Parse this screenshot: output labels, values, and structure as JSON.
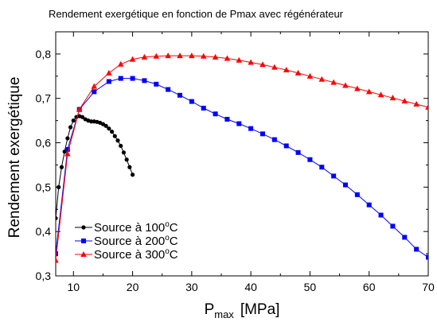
{
  "chart_data": {
    "type": "line",
    "title": "Rendement exergétique en fonction de Pmax avec régénérateur",
    "xlabel_main": "P",
    "xlabel_sub": "max",
    "xlabel_unit": "[MPa]",
    "ylabel": "Rendement exergétique",
    "xlim": [
      7,
      70
    ],
    "ylim": [
      0.3,
      0.85
    ],
    "x_ticks": [
      10,
      20,
      30,
      40,
      50,
      60,
      70
    ],
    "y_ticks": [
      0.3,
      0.4,
      0.5,
      0.6,
      0.7,
      0.8
    ],
    "x_tick_labels": [
      "10",
      "20",
      "30",
      "40",
      "50",
      "60",
      "70"
    ],
    "y_tick_labels": [
      "0,3",
      "0,4",
      "0,5",
      "0,6",
      "0,7",
      "0,8"
    ],
    "grid": false,
    "legend_position": "bottom-left",
    "series": [
      {
        "name_text": "Source à 100",
        "name_sup": "o",
        "name_unit": "C",
        "color": "#000000",
        "marker": "circle",
        "x": [
          7,
          7.5,
          8,
          8.5,
          9,
          9.5,
          10,
          10.5,
          11,
          11.5,
          12,
          12.5,
          13,
          13.5,
          14,
          14.5,
          15,
          15.5,
          16,
          16.5,
          17,
          17.5,
          18,
          18.5,
          19,
          19.5,
          20
        ],
        "y": [
          0.43,
          0.5,
          0.545,
          0.58,
          0.61,
          0.635,
          0.65,
          0.658,
          0.66,
          0.658,
          0.653,
          0.65,
          0.648,
          0.648,
          0.647,
          0.645,
          0.642,
          0.638,
          0.632,
          0.625,
          0.615,
          0.605,
          0.593,
          0.578,
          0.562,
          0.545,
          0.528
        ]
      },
      {
        "name_text": "Source à 200",
        "name_sup": "o",
        "name_unit": "C",
        "color": "#0000ff",
        "marker": "square",
        "x": [
          7,
          9,
          11,
          13.5,
          16,
          18,
          20,
          22,
          24,
          26,
          28,
          30,
          32,
          34,
          36,
          38,
          40,
          42,
          44,
          46,
          48,
          50,
          52,
          54,
          56,
          58,
          60,
          62,
          64,
          66,
          68,
          70
        ],
        "y": [
          0.35,
          0.585,
          0.675,
          0.715,
          0.738,
          0.745,
          0.745,
          0.74,
          0.732,
          0.72,
          0.707,
          0.693,
          0.678,
          0.665,
          0.653,
          0.643,
          0.632,
          0.62,
          0.607,
          0.593,
          0.578,
          0.562,
          0.545,
          0.525,
          0.505,
          0.483,
          0.46,
          0.437,
          0.412,
          0.387,
          0.36,
          0.342
        ]
      },
      {
        "name_text": "Source à 300",
        "name_sup": "o",
        "name_unit": "C",
        "color": "#ff0000",
        "marker": "triangle",
        "x": [
          7,
          9,
          11,
          13.5,
          16,
          18,
          20,
          22,
          24,
          26,
          28,
          30,
          32,
          34,
          36,
          38,
          40,
          42,
          44,
          46,
          48,
          50,
          52,
          54,
          56,
          58,
          60,
          62,
          64,
          66,
          68,
          70
        ],
        "y": [
          0.335,
          0.575,
          0.675,
          0.727,
          0.757,
          0.777,
          0.788,
          0.793,
          0.795,
          0.796,
          0.796,
          0.796,
          0.795,
          0.793,
          0.79,
          0.786,
          0.781,
          0.776,
          0.77,
          0.764,
          0.757,
          0.75,
          0.743,
          0.736,
          0.729,
          0.722,
          0.715,
          0.708,
          0.701,
          0.694,
          0.687,
          0.68
        ]
      }
    ]
  }
}
